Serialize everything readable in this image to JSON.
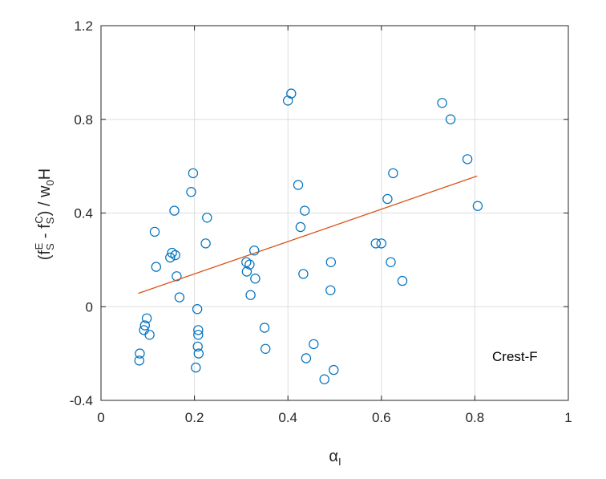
{
  "chart_data": {
    "type": "scatter",
    "title": "",
    "xlim": [
      0,
      1
    ],
    "ylim": [
      -0.4,
      1.2
    ],
    "x_ticks": [
      0,
      0.2,
      0.4,
      0.6,
      0.8,
      1
    ],
    "x_tick_labels": [
      "0",
      "0.2",
      "0.4",
      "0.6",
      "0.8",
      "1"
    ],
    "y_ticks": [
      -0.4,
      0,
      0.4,
      0.8,
      1.2
    ],
    "y_tick_labels": [
      "-0.4",
      "0",
      "0.4",
      "0.8",
      "1.2"
    ],
    "xlabel": {
      "base": "α",
      "sub": "I"
    },
    "ylabel": {
      "part1": "(f",
      "sub1": "S",
      "sup1": "E",
      "part2": " - f",
      "sub2": "S",
      "sup2": "C",
      "part3": ") / w",
      "sub3": "0",
      "part4": "H"
    },
    "grid": true,
    "annotation": "Crest-F",
    "series": [
      {
        "marker": "circle",
        "color": "#0072BD",
        "points": [
          [
            0.082,
            -0.23
          ],
          [
            0.083,
            -0.2
          ],
          [
            0.092,
            -0.1
          ],
          [
            0.094,
            -0.08
          ],
          [
            0.098,
            -0.05
          ],
          [
            0.104,
            -0.12
          ],
          [
            0.115,
            0.32
          ],
          [
            0.118,
            0.17
          ],
          [
            0.148,
            0.21
          ],
          [
            0.152,
            0.23
          ],
          [
            0.157,
            0.41
          ],
          [
            0.159,
            0.22
          ],
          [
            0.162,
            0.13
          ],
          [
            0.168,
            0.04
          ],
          [
            0.193,
            0.49
          ],
          [
            0.197,
            0.57
          ],
          [
            0.203,
            -0.26
          ],
          [
            0.206,
            -0.01
          ],
          [
            0.207,
            -0.17
          ],
          [
            0.208,
            -0.1
          ],
          [
            0.208,
            -0.12
          ],
          [
            0.209,
            -0.2
          ],
          [
            0.224,
            0.27
          ],
          [
            0.227,
            0.38
          ],
          [
            0.311,
            0.19
          ],
          [
            0.312,
            0.15
          ],
          [
            0.318,
            0.18
          ],
          [
            0.32,
            0.05
          ],
          [
            0.328,
            0.24
          ],
          [
            0.33,
            0.12
          ],
          [
            0.35,
            -0.09
          ],
          [
            0.352,
            -0.18
          ],
          [
            0.4,
            0.88
          ],
          [
            0.407,
            0.91
          ],
          [
            0.422,
            0.52
          ],
          [
            0.427,
            0.34
          ],
          [
            0.433,
            0.14
          ],
          [
            0.436,
            0.41
          ],
          [
            0.439,
            -0.22
          ],
          [
            0.455,
            -0.16
          ],
          [
            0.478,
            -0.31
          ],
          [
            0.491,
            0.07
          ],
          [
            0.492,
            0.19
          ],
          [
            0.498,
            -0.27
          ],
          [
            0.588,
            0.27
          ],
          [
            0.6,
            0.27
          ],
          [
            0.613,
            0.46
          ],
          [
            0.62,
            0.19
          ],
          [
            0.625,
            0.57
          ],
          [
            0.645,
            0.11
          ],
          [
            0.73,
            0.87
          ],
          [
            0.748,
            0.8
          ],
          [
            0.784,
            0.63
          ],
          [
            0.806,
            0.43
          ]
        ]
      },
      {
        "type": "line",
        "color": "#D95319",
        "points": [
          [
            0.08,
            0.057
          ],
          [
            0.805,
            0.558
          ]
        ]
      }
    ]
  }
}
